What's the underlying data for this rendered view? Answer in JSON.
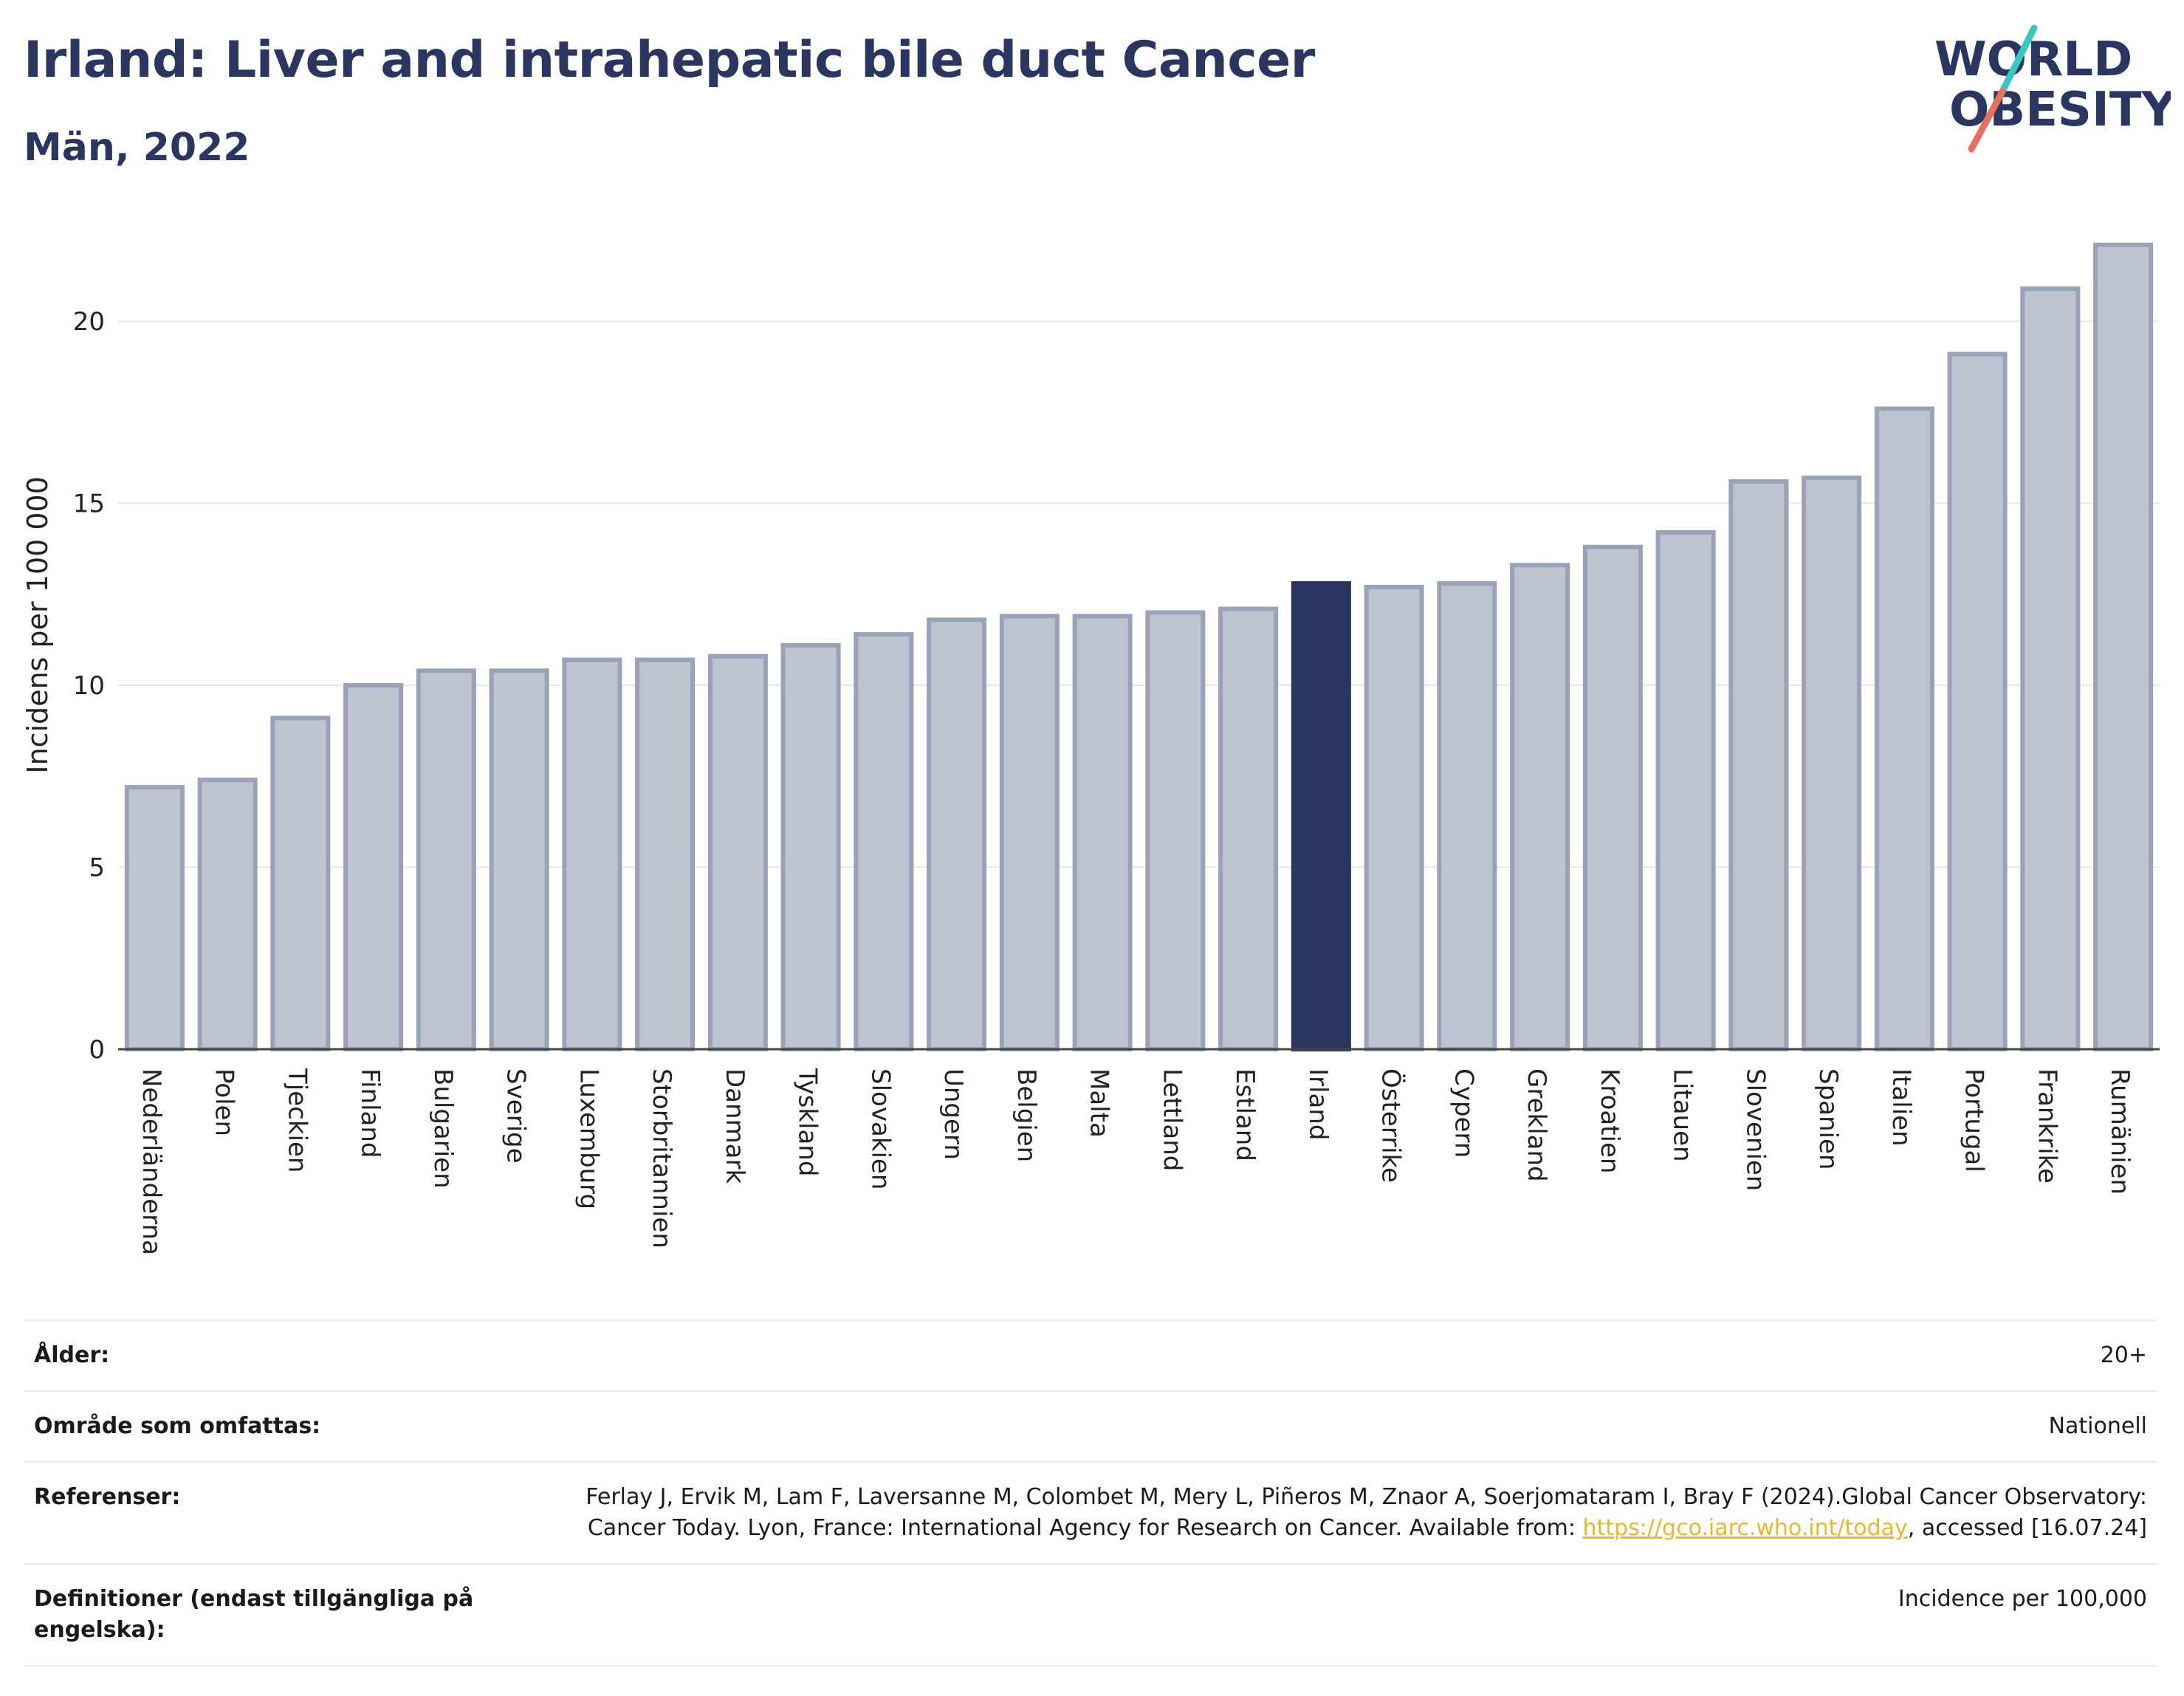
{
  "header": {
    "title": "Irland: Liver and intrahepatic bile duct Cancer",
    "subtitle": "Män, 2022"
  },
  "logo": {
    "line1": "WORLD",
    "line2": "OBESITY",
    "accent_colors": [
      "#3cc6c0",
      "#e8705a"
    ]
  },
  "colors": {
    "highlight": "#2a3560",
    "bar_fill": "#bec3d0",
    "bar_stroke": "#9aa2b8",
    "grid": "#e6e6ec"
  },
  "chart_data": {
    "type": "bar",
    "title": "Irland: Liver and intrahepatic bile duct Cancer",
    "subtitle": "Män, 2022",
    "xlabel": "",
    "ylabel": "Incidens per 100 000",
    "ylim": [
      0,
      22.5
    ],
    "yticks": [
      0,
      5,
      10,
      15,
      20
    ],
    "grid": true,
    "highlight": "Irland",
    "categories": [
      "Nederländerna",
      "Polen",
      "Tjeckien",
      "Finland",
      "Bulgarien",
      "Sverige",
      "Luxemburg",
      "Storbritannien",
      "Danmark",
      "Tyskland",
      "Slovakien",
      "Ungern",
      "Belgien",
      "Malta",
      "Lettland",
      "Estland",
      "Irland",
      "Österrike",
      "Cypern",
      "Grekland",
      "Kroatien",
      "Litauen",
      "Slovenien",
      "Spanien",
      "Italien",
      "Portugal",
      "Frankrike",
      "Rumänien"
    ],
    "values": [
      7.2,
      7.4,
      9.1,
      10.0,
      10.4,
      10.4,
      10.7,
      10.7,
      10.8,
      11.1,
      11.4,
      11.8,
      11.9,
      11.9,
      12.0,
      12.1,
      12.8,
      12.7,
      12.8,
      13.3,
      13.8,
      14.2,
      15.6,
      15.7,
      17.6,
      19.1,
      20.9,
      22.1
    ]
  },
  "info": {
    "rows": [
      {
        "label": "Ålder:",
        "value": "20+"
      },
      {
        "label": "Område som omfattas:",
        "value": "Nationell"
      },
      {
        "label": "Referenser:",
        "value_before": "Ferlay J, Ervik M, Lam F, Laversanne M, Colombet M, Mery L, Piñeros M, Znaor A, Soerjomataram I, Bray F (2024).Global Cancer Observatory: Cancer Today. Lyon, France: International Agency for Research on Cancer. Available from: ",
        "link": "https://gco.iarc.who.int/today",
        "value_after": ", accessed [16.07.24]"
      },
      {
        "label": "Definitioner (endast tillgängliga på engelska):",
        "value": "Incidence per 100,000"
      }
    ]
  }
}
